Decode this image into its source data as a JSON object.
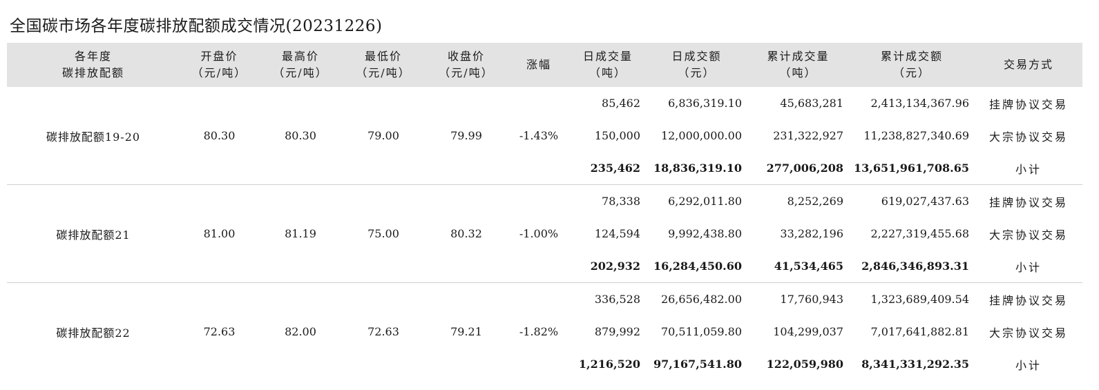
{
  "title": "全国碳市场各年度碳排放配额成交情况(20231226)",
  "headers": [
    {
      "l1": "各年度",
      "l2": "碳排放配额"
    },
    {
      "l1": "开盘价",
      "l2": "（元/吨）"
    },
    {
      "l1": "最高价",
      "l2": "（元/吨）"
    },
    {
      "l1": "最低价",
      "l2": "（元/吨）"
    },
    {
      "l1": "收盘价",
      "l2": "（元/吨）"
    },
    {
      "l1": "涨幅",
      "l2": ""
    },
    {
      "l1": "日成交量",
      "l2": "（吨）"
    },
    {
      "l1": "日成交额",
      "l2": "（元）"
    },
    {
      "l1": "累计成交量",
      "l2": "（吨）"
    },
    {
      "l1": "累计成交额",
      "l2": "（元）"
    },
    {
      "l1": "交易方式",
      "l2": ""
    }
  ],
  "groups": [
    {
      "name": "碳排放配额19-20",
      "open": "80.30",
      "high": "80.30",
      "low": "79.00",
      "close": "79.99",
      "change": "-1.43%",
      "rows": [
        {
          "daily_volume": "85,462",
          "daily_amount": "6,836,319.10",
          "cum_volume": "45,683,281",
          "cum_amount": "2,413,134,367.96",
          "method": "挂牌协议交易"
        },
        {
          "daily_volume": "150,000",
          "daily_amount": "12,000,000.00",
          "cum_volume": "231,322,927",
          "cum_amount": "11,238,827,340.69",
          "method": "大宗协议交易"
        },
        {
          "daily_volume": "235,462",
          "daily_amount": "18,836,319.10",
          "cum_volume": "277,006,208",
          "cum_amount": "13,651,961,708.65",
          "method": "小计"
        }
      ]
    },
    {
      "name": "碳排放配额21",
      "open": "81.00",
      "high": "81.19",
      "low": "75.00",
      "close": "80.32",
      "change": "-1.00%",
      "rows": [
        {
          "daily_volume": "78,338",
          "daily_amount": "6,292,011.80",
          "cum_volume": "8,252,269",
          "cum_amount": "619,027,437.63",
          "method": "挂牌协议交易"
        },
        {
          "daily_volume": "124,594",
          "daily_amount": "9,992,438.80",
          "cum_volume": "33,282,196",
          "cum_amount": "2,227,319,455.68",
          "method": "大宗协议交易"
        },
        {
          "daily_volume": "202,932",
          "daily_amount": "16,284,450.60",
          "cum_volume": "41,534,465",
          "cum_amount": "2,846,346,893.31",
          "method": "小计"
        }
      ]
    },
    {
      "name": "碳排放配额22",
      "open": "72.63",
      "high": "82.00",
      "low": "72.63",
      "close": "79.21",
      "change": "-1.82%",
      "rows": [
        {
          "daily_volume": "336,528",
          "daily_amount": "26,656,482.00",
          "cum_volume": "17,760,943",
          "cum_amount": "1,323,689,409.54",
          "method": "挂牌协议交易"
        },
        {
          "daily_volume": "879,992",
          "daily_amount": "70,511,059.80",
          "cum_volume": "104,299,037",
          "cum_amount": "7,017,641,882.81",
          "method": "大宗协议交易"
        },
        {
          "daily_volume": "1,216,520",
          "daily_amount": "97,167,541.80",
          "cum_volume": "122,059,980",
          "cum_amount": "8,341,331,292.35",
          "method": "小计"
        }
      ]
    }
  ]
}
